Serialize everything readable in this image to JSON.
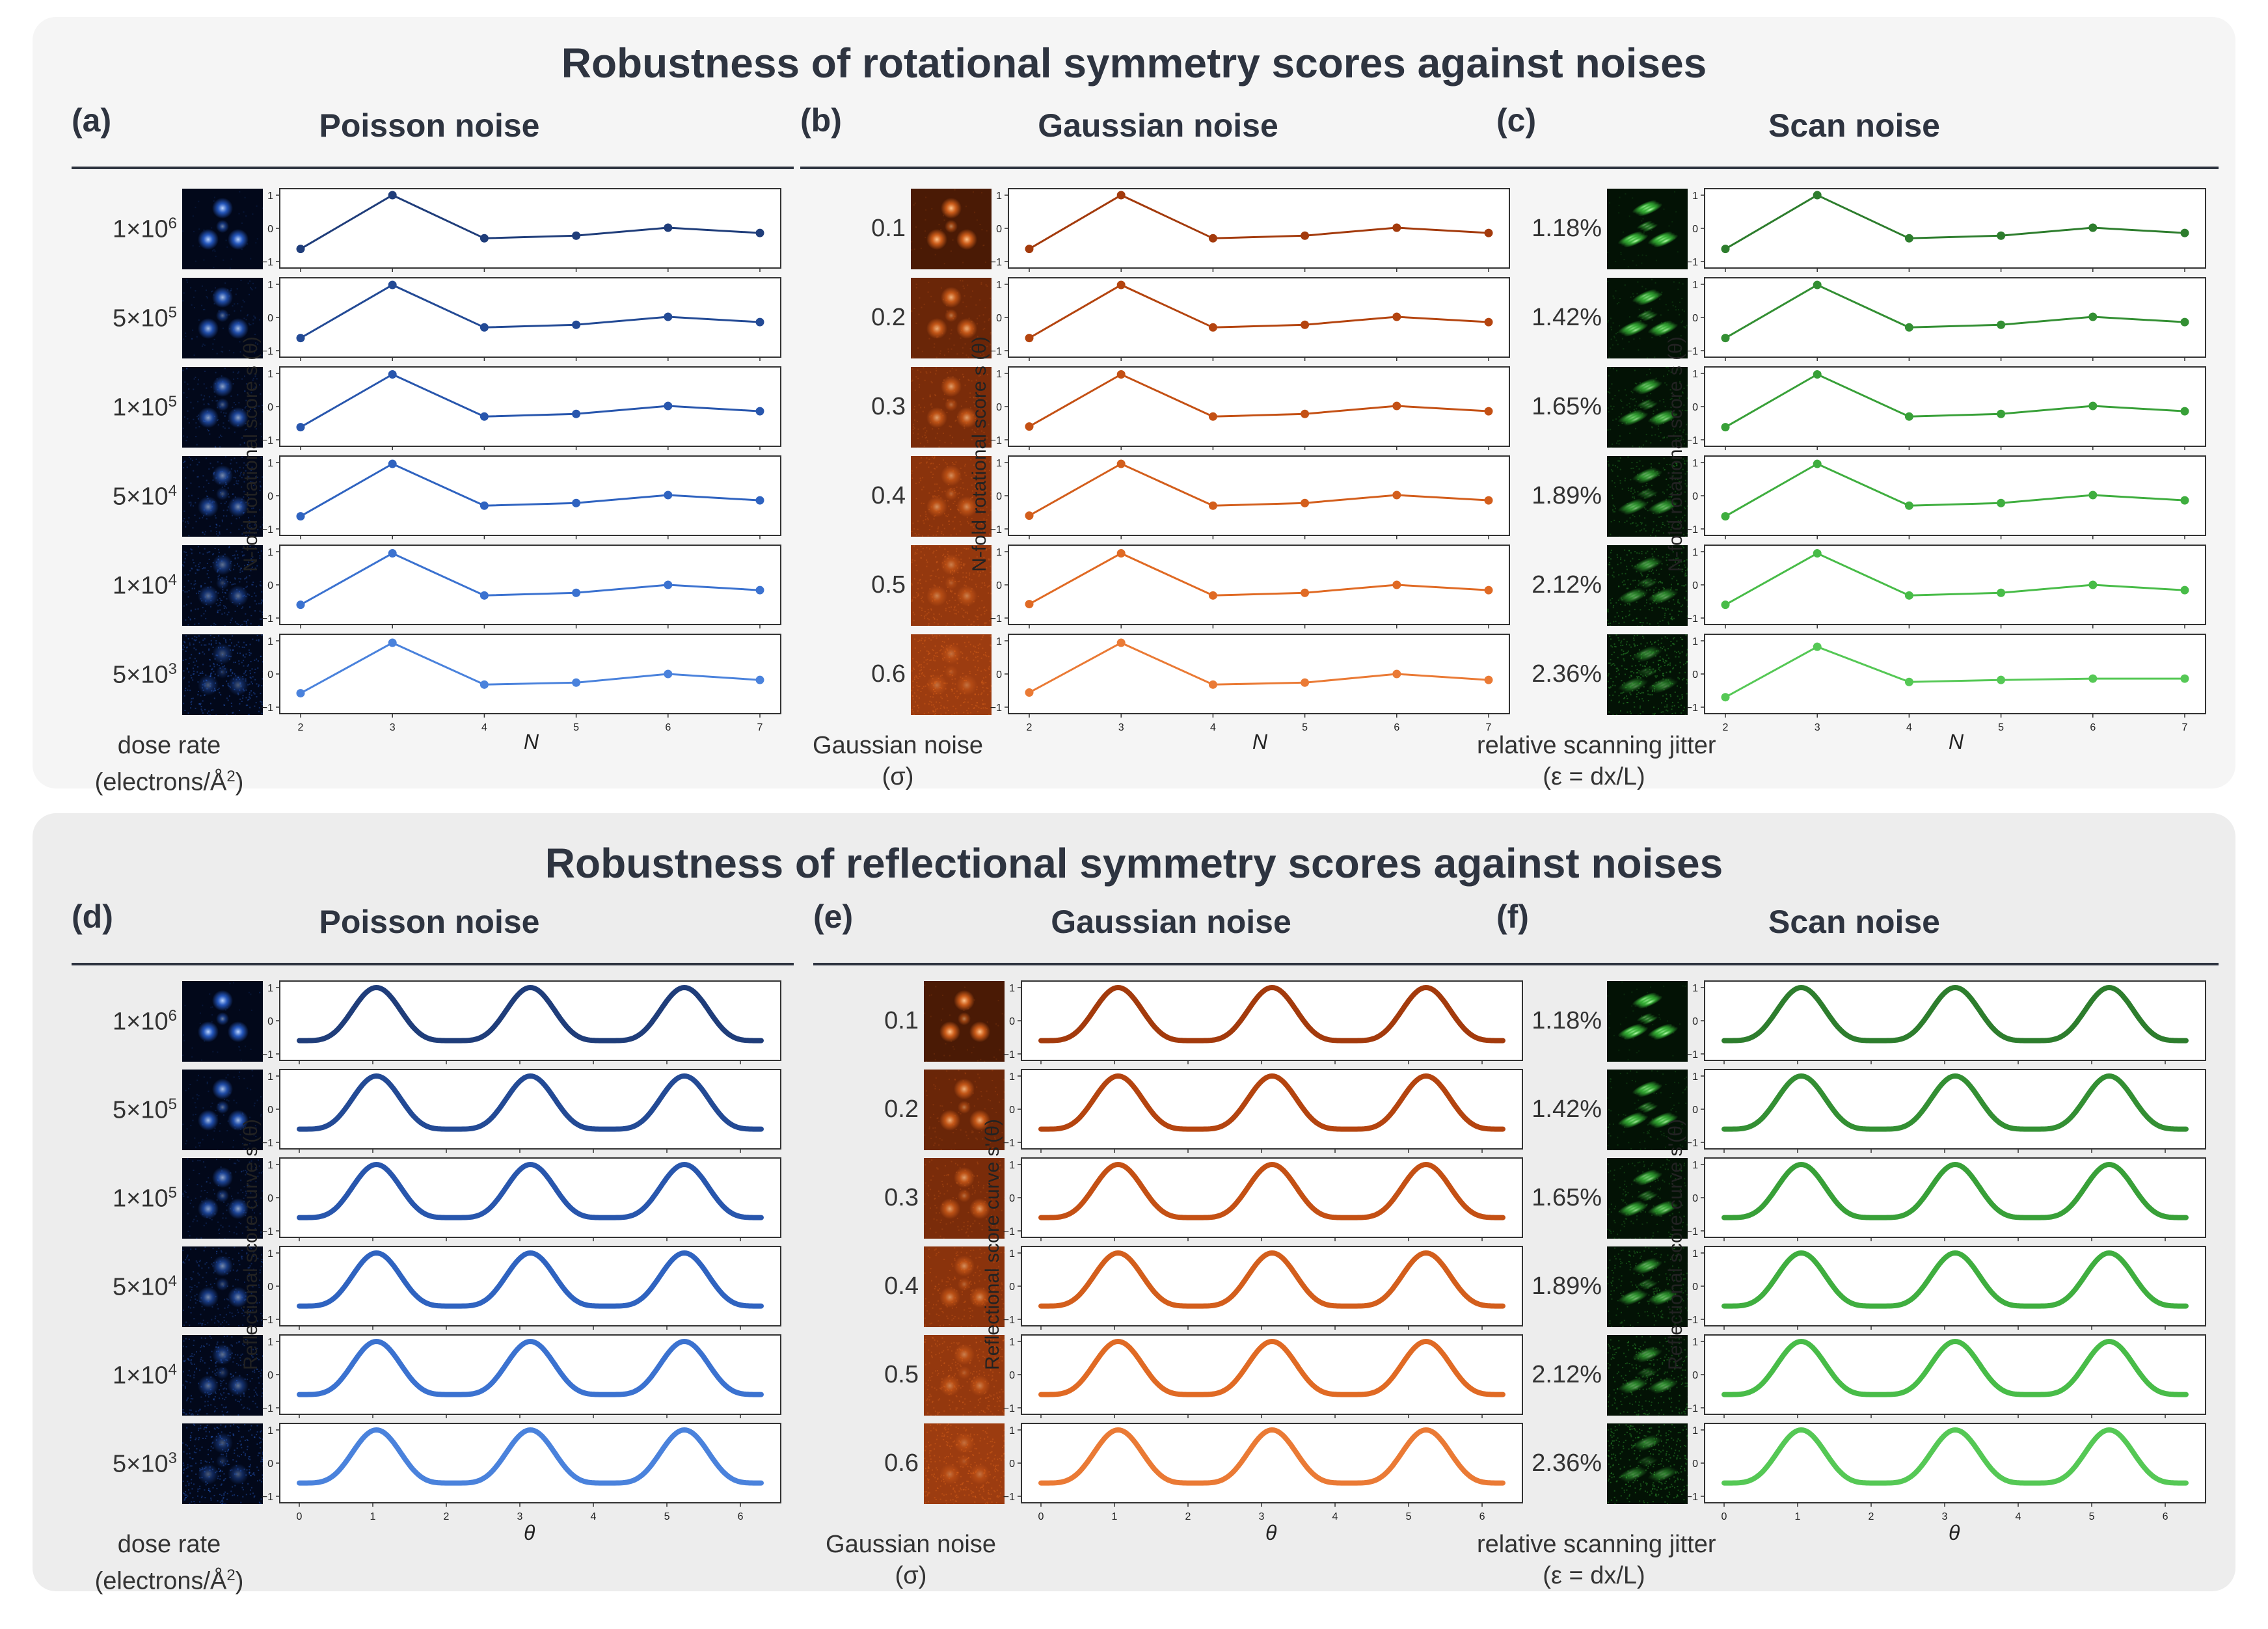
{
  "top_title": "Robustness of rotational symmetry scores against noises",
  "bottom_title": "Robustness of reflectional symmetry scores against noises",
  "colors": {
    "blue": [
      "#1f3d7a",
      "#234a95",
      "#2856ad",
      "#2f63c0",
      "#3b72d0",
      "#4a82dc"
    ],
    "orange": [
      "#a33a0c",
      "#b4440f",
      "#c45014",
      "#d35e1c",
      "#e06a24",
      "#ea7a35"
    ],
    "green": [
      "#2d7d2d",
      "#338f33",
      "#38a038",
      "#3fae3f",
      "#48bc48",
      "#55c855"
    ]
  },
  "panels": [
    {
      "id": "a",
      "letter": "(a)",
      "title": "Poisson noise",
      "palette": "blue",
      "kind": "rot",
      "row_labels": [
        [
          "1×10",
          "6"
        ],
        [
          "5×10",
          "5"
        ],
        [
          "1×10",
          "5"
        ],
        [
          "5×10",
          "4"
        ],
        [
          "1×10",
          "4"
        ],
        [
          "5×10",
          "3"
        ]
      ],
      "foot_line1": "dose rate",
      "foot_line2": "(electrons/Å",
      "foot_sup": "2",
      "foot_end": ")",
      "ylabel": "N-fold rotational score s (θ)",
      "xlabel": "N"
    },
    {
      "id": "b",
      "letter": "(b)",
      "title": "Gaussian noise",
      "palette": "orange",
      "kind": "rot",
      "row_labels": [
        [
          "0.1",
          ""
        ],
        [
          "0.2",
          ""
        ],
        [
          "0.3",
          ""
        ],
        [
          "0.4",
          ""
        ],
        [
          "0.5",
          ""
        ],
        [
          "0.6",
          ""
        ]
      ],
      "foot_line1": "Gaussian noise",
      "foot_line2": "(σ)",
      "foot_sup": "",
      "foot_end": "",
      "ylabel": "N-fold rotational score s (θ)",
      "xlabel": "N"
    },
    {
      "id": "c",
      "letter": "(c)",
      "title": "Scan noise",
      "palette": "green",
      "kind": "rot",
      "row_labels": [
        [
          "1.18%",
          ""
        ],
        [
          "1.42%",
          ""
        ],
        [
          "1.65%",
          ""
        ],
        [
          "1.89%",
          ""
        ],
        [
          "2.12%",
          ""
        ],
        [
          "2.36%",
          ""
        ]
      ],
      "foot_line1": "relative scanning jitter",
      "foot_line2": "(ε = dx/L)",
      "foot_sup": "",
      "foot_end": "",
      "ylabel": "N-fold rotational score s (θ)",
      "xlabel": "N"
    },
    {
      "id": "d",
      "letter": "(d)",
      "title": "Poisson noise",
      "palette": "blue",
      "kind": "ref",
      "row_labels": [
        [
          "1×10",
          "6"
        ],
        [
          "5×10",
          "5"
        ],
        [
          "1×10",
          "5"
        ],
        [
          "5×10",
          "4"
        ],
        [
          "1×10",
          "4"
        ],
        [
          "5×10",
          "3"
        ]
      ],
      "foot_line1": "dose rate",
      "foot_line2": "(electrons/Å",
      "foot_sup": "2",
      "foot_end": ")",
      "ylabel": "Reflectional score curve s'(θ)",
      "xlabel": "θ"
    },
    {
      "id": "e",
      "letter": "(e)",
      "title": "Gaussian noise",
      "palette": "orange",
      "kind": "ref",
      "row_labels": [
        [
          "0.1",
          ""
        ],
        [
          "0.2",
          ""
        ],
        [
          "0.3",
          ""
        ],
        [
          "0.4",
          ""
        ],
        [
          "0.5",
          ""
        ],
        [
          "0.6",
          ""
        ]
      ],
      "foot_line1": "Gaussian noise",
      "foot_line2": "(σ)",
      "foot_sup": "",
      "foot_end": "",
      "ylabel": "Reflectional score curve s'(θ)",
      "xlabel": "θ"
    },
    {
      "id": "f",
      "letter": "(f)",
      "title": "Scan noise",
      "palette": "green",
      "kind": "ref",
      "row_labels": [
        [
          "1.18%",
          ""
        ],
        [
          "1.42%",
          ""
        ],
        [
          "1.65%",
          ""
        ],
        [
          "1.89%",
          ""
        ],
        [
          "2.12%",
          ""
        ],
        [
          "2.36%",
          ""
        ]
      ],
      "foot_line1": "relative scanning jitter",
      "foot_line2": "(ε = dx/L)",
      "foot_sup": "",
      "foot_end": "",
      "ylabel": "Reflectional score curve s'(θ)",
      "xlabel": "θ"
    }
  ],
  "chart_data": [
    {
      "panel": "a",
      "type": "line",
      "x": [
        2,
        3,
        4,
        5,
        6,
        7
      ],
      "xlabel": "N",
      "ylabel": "N-fold rotational score s (θ)",
      "ylim": [
        -1,
        1
      ],
      "yticks": [
        -1,
        0,
        1
      ],
      "series": [
        {
          "name": "1×10^6",
          "values": [
            -0.62,
            1.0,
            -0.3,
            -0.22,
            0.02,
            -0.14
          ]
        },
        {
          "name": "5×10^5",
          "values": [
            -0.62,
            0.98,
            -0.3,
            -0.22,
            0.02,
            -0.14
          ]
        },
        {
          "name": "1×10^5",
          "values": [
            -0.62,
            0.97,
            -0.3,
            -0.22,
            0.02,
            -0.14
          ]
        },
        {
          "name": "5×10^4",
          "values": [
            -0.62,
            0.96,
            -0.3,
            -0.22,
            0.02,
            -0.14
          ]
        },
        {
          "name": "1×10^4",
          "values": [
            -0.6,
            0.95,
            -0.32,
            -0.24,
            0.0,
            -0.16
          ]
        },
        {
          "name": "5×10^3",
          "values": [
            -0.58,
            0.94,
            -0.32,
            -0.26,
            0.0,
            -0.18
          ]
        }
      ]
    },
    {
      "panel": "b",
      "type": "line",
      "x": [
        2,
        3,
        4,
        5,
        6,
        7
      ],
      "xlabel": "N",
      "ylabel": "N-fold rotational score s (θ)",
      "ylim": [
        -1,
        1
      ],
      "yticks": [
        -1,
        0,
        1
      ],
      "series": [
        {
          "name": "0.1",
          "values": [
            -0.62,
            1.0,
            -0.3,
            -0.22,
            0.02,
            -0.14
          ]
        },
        {
          "name": "0.2",
          "values": [
            -0.62,
            0.98,
            -0.3,
            -0.22,
            0.02,
            -0.14
          ]
        },
        {
          "name": "0.3",
          "values": [
            -0.6,
            0.97,
            -0.3,
            -0.22,
            0.02,
            -0.14
          ]
        },
        {
          "name": "0.4",
          "values": [
            -0.6,
            0.96,
            -0.3,
            -0.22,
            0.02,
            -0.14
          ]
        },
        {
          "name": "0.5",
          "values": [
            -0.58,
            0.95,
            -0.32,
            -0.24,
            0.0,
            -0.16
          ]
        },
        {
          "name": "0.6",
          "values": [
            -0.56,
            0.94,
            -0.32,
            -0.26,
            0.0,
            -0.18
          ]
        }
      ]
    },
    {
      "panel": "c",
      "type": "line",
      "x": [
        2,
        3,
        4,
        5,
        6,
        7
      ],
      "xlabel": "N",
      "ylabel": "N-fold rotational score s (θ)",
      "ylim": [
        -1,
        1
      ],
      "yticks": [
        -1,
        0,
        1
      ],
      "series": [
        {
          "name": "1.18%",
          "values": [
            -0.62,
            1.0,
            -0.3,
            -0.22,
            0.02,
            -0.14
          ]
        },
        {
          "name": "1.42%",
          "values": [
            -0.62,
            0.98,
            -0.3,
            -0.22,
            0.02,
            -0.14
          ]
        },
        {
          "name": "1.65%",
          "values": [
            -0.62,
            0.97,
            -0.3,
            -0.22,
            0.02,
            -0.14
          ]
        },
        {
          "name": "1.89%",
          "values": [
            -0.62,
            0.96,
            -0.3,
            -0.22,
            0.02,
            -0.14
          ]
        },
        {
          "name": "2.12%",
          "values": [
            -0.6,
            0.95,
            -0.32,
            -0.24,
            0.0,
            -0.16
          ]
        },
        {
          "name": "2.36%",
          "values": [
            -0.7,
            0.82,
            -0.24,
            -0.18,
            -0.14,
            -0.14
          ]
        }
      ]
    },
    {
      "panel": "d",
      "type": "line",
      "xlim": [
        0,
        6.283
      ],
      "xticks": [
        0,
        1,
        2,
        3,
        4,
        5,
        6
      ],
      "xlabel": "θ",
      "ylabel": "Reflectional score curve s'(θ)",
      "ylim": [
        -1,
        1
      ],
      "yticks": [
        -1,
        0,
        1
      ],
      "curve": {
        "peaks_at": [
          1.05,
          3.14,
          5.24
        ],
        "max": 1.0,
        "min": -0.6
      },
      "series": [
        {
          "name": "1×10^6"
        },
        {
          "name": "5×10^5"
        },
        {
          "name": "1×10^5"
        },
        {
          "name": "5×10^4"
        },
        {
          "name": "1×10^4"
        },
        {
          "name": "5×10^3"
        }
      ]
    },
    {
      "panel": "e",
      "type": "line",
      "xlim": [
        0,
        6.283
      ],
      "xticks": [
        0,
        1,
        2,
        3,
        4,
        5,
        6
      ],
      "xlabel": "θ",
      "ylabel": "Reflectional score curve s'(θ)",
      "ylim": [
        -1,
        1
      ],
      "yticks": [
        -1,
        0,
        1
      ],
      "curve": {
        "peaks_at": [
          1.05,
          3.14,
          5.24
        ],
        "max": 1.0,
        "min": -0.6
      },
      "series": [
        {
          "name": "0.1"
        },
        {
          "name": "0.2"
        },
        {
          "name": "0.3"
        },
        {
          "name": "0.4"
        },
        {
          "name": "0.5"
        },
        {
          "name": "0.6"
        }
      ]
    },
    {
      "panel": "f",
      "type": "line",
      "xlim": [
        0,
        6.283
      ],
      "xticks": [
        0,
        1,
        2,
        3,
        4,
        5,
        6
      ],
      "xlabel": "θ",
      "ylabel": "Reflectional score curve s'(θ)",
      "ylim": [
        -1,
        1
      ],
      "yticks": [
        -1,
        0,
        1
      ],
      "curve": {
        "peaks_at": [
          1.05,
          3.14,
          5.24
        ],
        "max": 1.0,
        "min": -0.6
      },
      "series": [
        {
          "name": "1.18%"
        },
        {
          "name": "1.42%"
        },
        {
          "name": "1.65%"
        },
        {
          "name": "1.89%"
        },
        {
          "name": "2.12%"
        },
        {
          "name": "2.36%"
        }
      ]
    }
  ]
}
